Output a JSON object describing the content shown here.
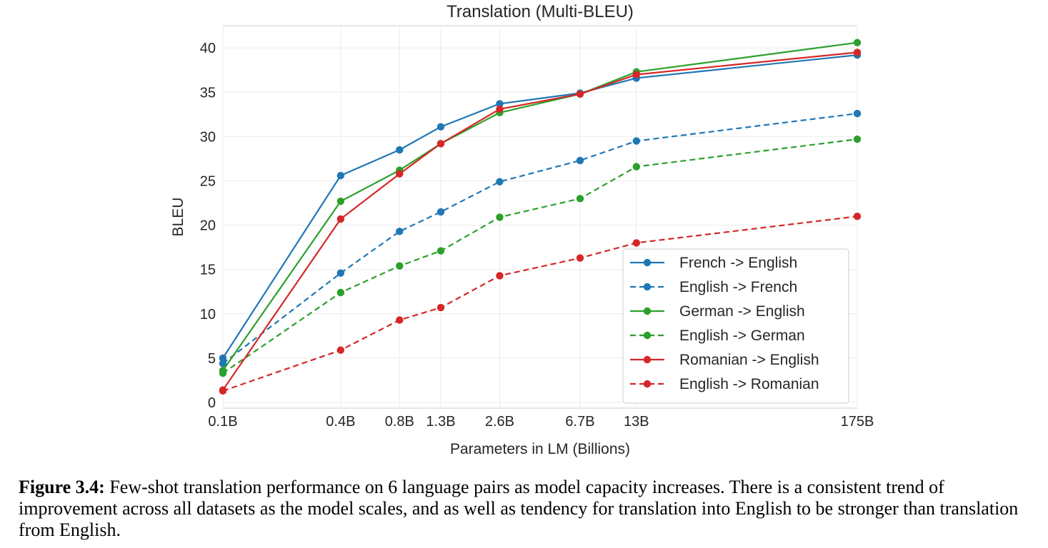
{
  "chart_data": {
    "type": "line",
    "title": "Translation (Multi-BLEU)",
    "xlabel": "Parameters in LM (Billions)",
    "ylabel": "BLEU",
    "categories": [
      "0.1B",
      "0.4B",
      "0.8B",
      "1.3B",
      "2.6B",
      "6.7B",
      "13B",
      "175B"
    ],
    "x": [
      0.1,
      0.4,
      0.8,
      1.3,
      2.6,
      6.7,
      13,
      175
    ],
    "x_scale": "log",
    "ylim": [
      0,
      42.5
    ],
    "yticks": [
      0,
      5,
      10,
      15,
      20,
      25,
      30,
      35,
      40
    ],
    "grid": true,
    "legend_position": "lower-right",
    "series": [
      {
        "name": "French -> English",
        "color": "#1f77b4",
        "dash": "solid",
        "values": [
          5.0,
          25.6,
          28.5,
          31.1,
          33.7,
          34.9,
          36.6,
          39.2
        ]
      },
      {
        "name": "English -> French",
        "color": "#1f77b4",
        "dash": "dashed",
        "values": [
          4.4,
          14.6,
          19.3,
          21.5,
          24.9,
          27.3,
          29.5,
          32.6
        ]
      },
      {
        "name": "German -> English",
        "color": "#2ca02c",
        "dash": "solid",
        "values": [
          3.6,
          22.7,
          26.2,
          29.2,
          32.7,
          34.8,
          37.3,
          40.6
        ]
      },
      {
        "name": "English -> German",
        "color": "#2ca02c",
        "dash": "dashed",
        "values": [
          3.3,
          12.4,
          15.4,
          17.1,
          20.9,
          23.0,
          26.6,
          29.7
        ]
      },
      {
        "name": "Romanian -> English",
        "color": "#d62728",
        "dash": "solid",
        "values": [
          1.4,
          20.7,
          25.8,
          29.2,
          33.1,
          34.8,
          37.0,
          39.5
        ]
      },
      {
        "name": "English -> Romanian",
        "color": "#d62728",
        "dash": "dashed",
        "values": [
          1.3,
          5.9,
          9.3,
          10.7,
          14.3,
          16.3,
          18.0,
          21.0
        ]
      }
    ]
  },
  "caption": {
    "label": "Figure 3.4:",
    "text": " Few-shot translation performance on 6 language pairs as model capacity increases. There is a consistent trend of improvement across all datasets as the model scales, and as well as tendency for translation into English to be stronger than translation from English."
  }
}
